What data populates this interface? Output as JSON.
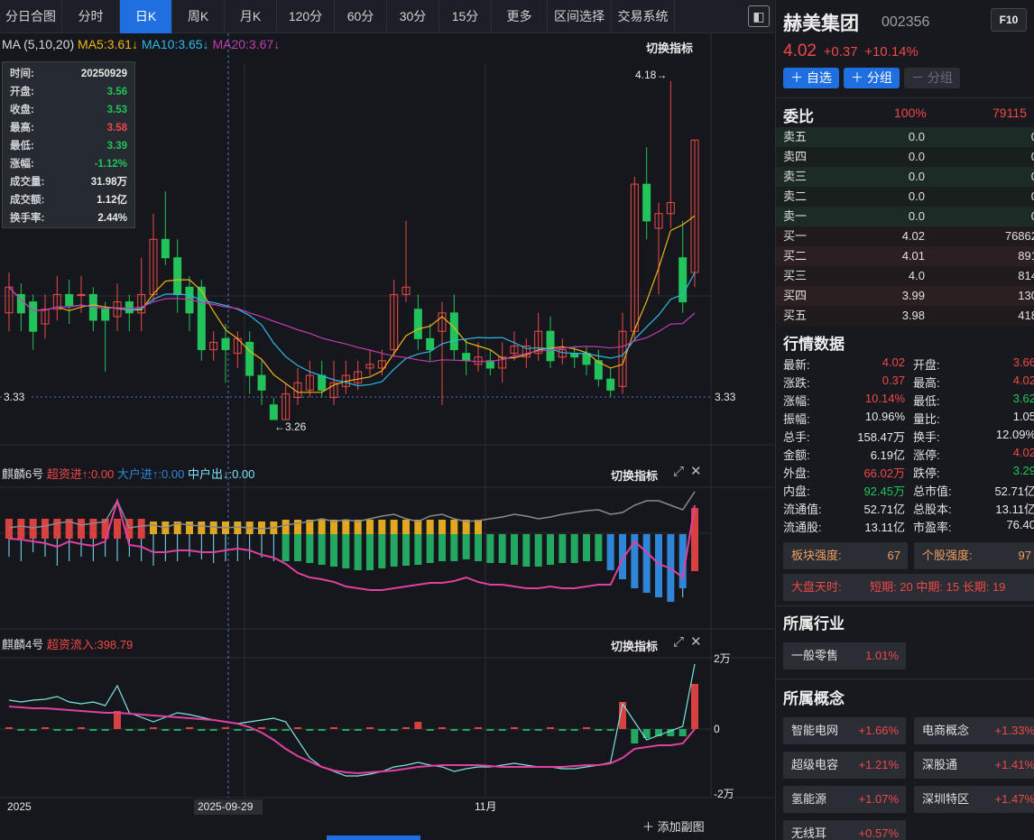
{
  "tabs": [
    "分日合图",
    "分时",
    "日K",
    "周K",
    "月K",
    "120分",
    "60分",
    "30分",
    "15分",
    "更多",
    "区间选择",
    "交易系统"
  ],
  "active_tab": "日K",
  "main_chart": {
    "ma_label": "MA (5,10,20)",
    "ma5": "MA5:3.61↓",
    "ma10": "MA10:3.65↓",
    "ma20": "MA20:3.67↓",
    "switch": "切换指标",
    "high_mark": "4.18→",
    "low_mark": "←3.26",
    "price_level": "3.33",
    "tooltip": [
      {
        "k": "时间:",
        "v": "20250929",
        "c": "#e8e8e8"
      },
      {
        "k": "开盘:",
        "v": "3.56",
        "c": "#22c35a"
      },
      {
        "k": "收盘:",
        "v": "3.53",
        "c": "#22c35a"
      },
      {
        "k": "最高:",
        "v": "3.58",
        "c": "#f04848"
      },
      {
        "k": "最低:",
        "v": "3.39",
        "c": "#22c35a"
      },
      {
        "k": "涨幅:",
        "v": "-1.12%",
        "c": "#22c35a"
      },
      {
        "k": "成交量:",
        "v": "31.98万",
        "c": "#e8e8e8"
      },
      {
        "k": "成交额:",
        "v": "1.12亿",
        "c": "#e8e8e8"
      },
      {
        "k": "换手率:",
        "v": "2.44%",
        "c": "#e8e8e8"
      }
    ]
  },
  "panel1": {
    "name": "麒麟6号",
    "a": "超资进↑:0.00",
    "b": "大户进↑:0.00",
    "c": "中户出↓:0.00",
    "switch": "切换指标"
  },
  "panel2": {
    "name": "麒麟4号",
    "a": "超资流入:398.79",
    "switch": "切换指标",
    "ax_top": "2万",
    "ax_mid": "0",
    "ax_bot": "-2万"
  },
  "x_labels": [
    "2025",
    "2025-09-29",
    "11月"
  ],
  "add_sub": "添加副图",
  "stock": {
    "name": "赫美集团",
    "code": "002356",
    "f10": "F10",
    "price": "4.02",
    "change": "+0.37",
    "pct": "+10.14%",
    "btn_fav": "自选",
    "btn_group": "分组",
    "btn_ungroup": "分组"
  },
  "orderbook": {
    "title": "委比",
    "ratio": "100%",
    "diff": "79115",
    "rows": [
      {
        "n": "卖五",
        "p": "0.0",
        "v": "0"
      },
      {
        "n": "卖四",
        "p": "0.0",
        "v": "0"
      },
      {
        "n": "卖三",
        "p": "0.0",
        "v": "0"
      },
      {
        "n": "卖二",
        "p": "0.0",
        "v": "0"
      },
      {
        "n": "卖一",
        "p": "0.0",
        "v": "0"
      },
      {
        "n": "买一",
        "p": "4.02",
        "v": "76862"
      },
      {
        "n": "买二",
        "p": "4.01",
        "v": "891"
      },
      {
        "n": "买三",
        "p": "4.0",
        "v": "814"
      },
      {
        "n": "买四",
        "p": "3.99",
        "v": "130"
      },
      {
        "n": "买五",
        "p": "3.98",
        "v": "418"
      }
    ]
  },
  "market": {
    "title": "行情数据",
    "rows": [
      [
        "最新:",
        "4.02",
        "#f04848",
        "开盘:",
        "3.66",
        "#f04848"
      ],
      [
        "涨跌:",
        "0.37",
        "#f04848",
        "最高:",
        "4.02",
        "#f04848"
      ],
      [
        "涨幅:",
        "10.14%",
        "#f04848",
        "最低:",
        "3.62",
        "#22c35a"
      ],
      [
        "振幅:",
        "10.96%",
        "#e8e8e8",
        "量比:",
        "1.05",
        "#e8e8e8"
      ],
      [
        "总手:",
        "158.47万",
        "#e8e8e8",
        "换手:",
        "12.09%",
        "#e8e8e8"
      ],
      [
        "金额:",
        "6.19亿",
        "#e8e8e8",
        "涨停:",
        "4.02",
        "#f04848"
      ],
      [
        "外盘:",
        "66.02万",
        "#f04848",
        "跌停:",
        "3.29",
        "#22c35a"
      ],
      [
        "内盘:",
        "92.45万",
        "#22c35a",
        "总市值:",
        "52.71亿",
        "#e8e8e8"
      ],
      [
        "流通值:",
        "52.71亿",
        "#e8e8e8",
        "总股本:",
        "13.11亿",
        "#e8e8e8"
      ],
      [
        "流通股:",
        "13.11亿",
        "#e8e8e8",
        "市盈率:",
        "76.40",
        "#e8e8e8"
      ]
    ]
  },
  "strength": {
    "sector_label": "板块强度:",
    "sector_val": "67",
    "stock_label": "个股强度:",
    "stock_val": "97"
  },
  "market_time": {
    "label": "大盘天时:",
    "short": "短期:",
    "short_v": "20",
    "mid": "中期:",
    "mid_v": "15",
    "long": "长期:",
    "long_v": "19"
  },
  "industry": {
    "title": "所属行业",
    "items": [
      {
        "n": "一般零售",
        "v": "1.01%"
      }
    ]
  },
  "concepts": {
    "title": "所属概念",
    "items": [
      {
        "n": "智能电网",
        "v": "+1.66%"
      },
      {
        "n": "电商概念",
        "v": "+1.33%"
      },
      {
        "n": "超级电容",
        "v": "+1.21%"
      },
      {
        "n": "深股通",
        "v": "+1.41%"
      },
      {
        "n": "氢能源",
        "v": "+1.07%"
      },
      {
        "n": "深圳特区",
        "v": "+1.47%"
      },
      {
        "n": "无线耳",
        "v": "+0.57%"
      }
    ]
  },
  "colors": {
    "up": "#f04848",
    "down": "#22c35a",
    "accent": "#1f6fe0",
    "ma5": "#f0b31a",
    "ma10": "#2fb8e6",
    "ma20": "#c33bb3"
  }
}
